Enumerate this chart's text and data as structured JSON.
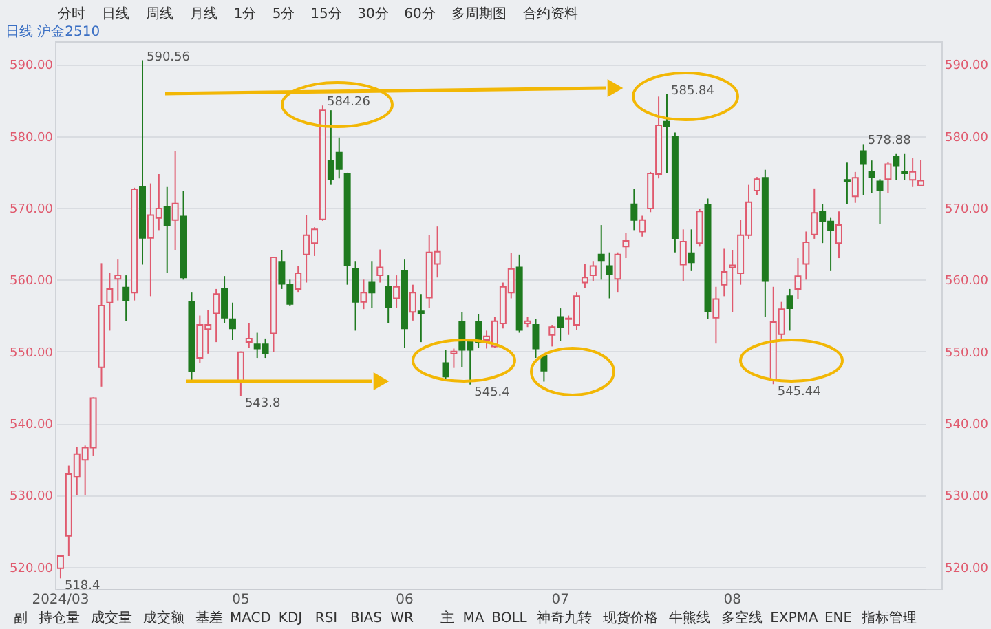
{
  "chart_data": {
    "type": "candlestick",
    "title": "日线 沪金2510",
    "categories": [
      "2024/03",
      null,
      null,
      null,
      null,
      null,
      null,
      null,
      null,
      null,
      null,
      null,
      null,
      null,
      null,
      null,
      null,
      null,
      null,
      null,
      null,
      null,
      "05",
      null,
      null,
      null,
      null,
      null,
      null,
      null,
      null,
      null,
      null,
      null,
      null,
      null,
      null,
      null,
      null,
      null,
      null,
      null,
      "06",
      null,
      null,
      null,
      null,
      null,
      null,
      null,
      null,
      null,
      null,
      null,
      null,
      null,
      null,
      null,
      null,
      null,
      null,
      "07",
      null,
      null,
      null,
      null,
      null,
      null,
      null,
      null,
      null,
      null,
      null,
      null,
      null,
      null,
      null,
      null,
      null,
      null,
      null,
      null,
      "08",
      null,
      null,
      null,
      null,
      null,
      null,
      null,
      null,
      null,
      null,
      null,
      null,
      null,
      null,
      null,
      null,
      null,
      null,
      null,
      null,
      null,
      null,
      null
    ],
    "ohlc": [
      [
        519.8,
        521.6,
        518.4,
        521.5
      ],
      [
        524.3,
        534.1,
        521.5,
        532.9
      ],
      [
        532.6,
        536.7,
        530.0,
        535.7
      ],
      [
        534.9,
        536.9,
        530.0,
        536.6
      ],
      [
        536.6,
        543.6,
        535.5,
        543.5
      ],
      [
        547.8,
        562.3,
        545.1,
        556.4
      ],
      [
        556.8,
        560.9,
        552.9,
        558.7
      ],
      [
        560.1,
        562.8,
        557.1,
        560.6
      ],
      [
        558.9,
        560.6,
        554.2,
        557.1
      ],
      [
        558.2,
        572.8,
        557.1,
        572.6
      ],
      [
        572.9,
        590.56,
        562.1,
        565.8
      ],
      [
        565.8,
        573.4,
        557.7,
        569.0
      ],
      [
        568.6,
        574.7,
        566.9,
        569.9
      ],
      [
        570.1,
        572.9,
        560.9,
        567.5
      ],
      [
        568.3,
        577.9,
        564.1,
        570.6
      ],
      [
        568.8,
        572.4,
        560.0,
        560.3
      ],
      [
        556.9,
        558.2,
        546.0,
        547.2
      ],
      [
        549.1,
        555.0,
        548.4,
        553.7
      ],
      [
        553.1,
        555.8,
        549.7,
        553.7
      ],
      [
        555.3,
        558.7,
        551.3,
        558.0
      ],
      [
        558.8,
        560.5,
        553.9,
        554.7
      ],
      [
        554.5,
        556.8,
        551.6,
        553.2
      ],
      [
        545.8,
        550.0,
        543.8,
        549.9
      ],
      [
        551.3,
        553.9,
        550.5,
        551.8
      ],
      [
        551.0,
        552.6,
        549.1,
        550.4
      ],
      [
        551.0,
        551.8,
        549.1,
        549.7
      ],
      [
        552.5,
        563.2,
        549.9,
        563.1
      ],
      [
        562.5,
        564.1,
        558.7,
        559.4
      ],
      [
        559.3,
        560.0,
        556.4,
        556.6
      ],
      [
        558.7,
        561.9,
        558.2,
        560.9
      ],
      [
        563.5,
        569.0,
        559.6,
        566.2
      ],
      [
        565.1,
        567.3,
        563.3,
        567.0
      ],
      [
        568.4,
        584.26,
        568.2,
        583.6
      ],
      [
        576.6,
        583.6,
        573.2,
        574.0
      ],
      [
        577.7,
        579.8,
        574.1,
        575.4
      ],
      [
        574.8,
        574.9,
        559.3,
        562.0
      ],
      [
        561.5,
        562.6,
        552.9,
        556.9
      ],
      [
        556.9,
        560.0,
        555.9,
        558.2
      ],
      [
        559.6,
        562.6,
        556.1,
        558.2
      ],
      [
        560.6,
        564.2,
        559.6,
        561.7
      ],
      [
        559.0,
        560.6,
        553.9,
        556.2
      ],
      [
        557.4,
        560.6,
        556.1,
        559.0
      ],
      [
        561.2,
        562.8,
        550.5,
        553.2
      ],
      [
        555.5,
        559.3,
        554.3,
        558.2
      ],
      [
        555.6,
        558.0,
        551.3,
        555.3
      ],
      [
        557.5,
        566.2,
        556.1,
        563.8
      ],
      [
        562.2,
        567.4,
        560.3,
        563.9
      ],
      [
        548.4,
        550.2,
        545.9,
        546.5
      ],
      [
        549.7,
        550.4,
        547.7,
        550.0
      ],
      [
        554.1,
        555.5,
        547.8,
        550.2
      ],
      [
        551.5,
        551.6,
        545.4,
        550.2
      ],
      [
        554.1,
        555.2,
        550.5,
        551.3
      ],
      [
        551.6,
        552.9,
        550.4,
        552.1
      ],
      [
        550.7,
        554.8,
        550.5,
        554.2
      ],
      [
        553.9,
        559.6,
        553.2,
        559.0
      ],
      [
        558.2,
        563.7,
        557.4,
        561.5
      ],
      [
        561.7,
        563.5,
        552.6,
        553.0
      ],
      [
        553.9,
        554.8,
        553.4,
        554.2
      ],
      [
        553.7,
        554.5,
        549.1,
        550.4
      ],
      [
        549.4,
        549.7,
        545.8,
        547.3
      ],
      [
        552.3,
        553.7,
        550.7,
        553.4
      ],
      [
        554.8,
        556.0,
        551.5,
        553.4
      ],
      [
        554.5,
        555.0,
        552.3,
        554.6
      ],
      [
        553.7,
        558.2,
        553.0,
        557.7
      ],
      [
        559.6,
        562.2,
        558.8,
        560.3
      ],
      [
        560.6,
        562.6,
        559.8,
        561.9
      ],
      [
        563.5,
        567.6,
        560.0,
        562.7
      ],
      [
        561.9,
        563.8,
        557.4,
        560.8
      ],
      [
        560.1,
        563.8,
        558.2,
        563.5
      ],
      [
        564.6,
        566.5,
        563.0,
        565.4
      ],
      [
        570.5,
        572.6,
        566.9,
        568.3
      ],
      [
        566.7,
        568.9,
        566.0,
        568.3
      ],
      [
        569.9,
        575.0,
        569.4,
        574.8
      ],
      [
        574.7,
        585.5,
        574.1,
        581.5
      ],
      [
        582.0,
        585.84,
        574.8,
        581.4
      ],
      [
        579.9,
        580.5,
        563.8,
        565.7
      ],
      [
        562.1,
        567.0,
        559.8,
        565.3
      ],
      [
        563.7,
        567.0,
        561.2,
        562.4
      ],
      [
        565.1,
        569.9,
        564.6,
        569.5
      ],
      [
        570.4,
        571.3,
        554.5,
        555.6
      ],
      [
        554.7,
        559.0,
        551.1,
        557.3
      ],
      [
        559.3,
        564.3,
        557.7,
        561.1
      ],
      [
        561.7,
        564.1,
        555.5,
        562.0
      ],
      [
        560.9,
        568.3,
        559.3,
        566.2
      ],
      [
        566.2,
        573.2,
        565.6,
        570.8
      ],
      [
        572.4,
        574.3,
        571.8,
        574.0
      ],
      [
        574.2,
        575.3,
        554.8,
        559.8
      ],
      [
        546.0,
        559.0,
        545.44,
        554.1
      ],
      [
        552.4,
        556.9,
        551.8,
        555.9
      ],
      [
        557.7,
        558.7,
        552.9,
        556.0
      ],
      [
        558.7,
        563.0,
        557.3,
        560.5
      ],
      [
        562.2,
        566.7,
        560.0,
        565.2
      ],
      [
        566.3,
        572.7,
        565.7,
        569.3
      ],
      [
        569.5,
        570.5,
        565.1,
        568.1
      ],
      [
        568.1,
        568.6,
        561.2,
        566.9
      ],
      [
        565.1,
        569.5,
        563.0,
        567.6
      ],
      [
        573.9,
        576.3,
        570.5,
        573.7
      ],
      [
        571.6,
        575.0,
        570.7,
        574.2
      ],
      [
        577.9,
        578.88,
        571.8,
        576.1
      ],
      [
        575.0,
        576.6,
        572.1,
        574.3
      ],
      [
        573.7,
        574.0,
        567.7,
        572.4
      ],
      [
        574.0,
        576.4,
        572.1,
        576.1
      ],
      [
        577.2,
        577.5,
        573.9,
        575.9
      ],
      [
        575.0,
        577.5,
        573.9,
        574.8
      ],
      [
        573.9,
        576.9,
        572.9,
        575.0
      ],
      [
        573.1,
        576.7,
        573.1,
        573.8
      ]
    ],
    "colors": [
      "#e05a6e",
      "#e05a6e",
      "#e05a6e",
      "#e05a6e",
      "#e05a6e",
      "#e05a6e",
      "#e05a6e",
      "#e05a6e",
      "#1f7a1f",
      "#e05a6e",
      "#1f7a1f",
      "#e05a6e",
      "#e05a6e",
      "#1f7a1f",
      "#e05a6e",
      "#1f7a1f",
      "#1f7a1f",
      "#e05a6e",
      "#e05a6e",
      "#e05a6e",
      "#1f7a1f",
      "#1f7a1f",
      "#e05a6e",
      "#e05a6e",
      "#1f7a1f",
      "#1f7a1f",
      "#e05a6e",
      "#1f7a1f",
      "#1f7a1f",
      "#e05a6e",
      "#e05a6e",
      "#e05a6e",
      "#e05a6e",
      "#1f7a1f",
      "#1f7a1f",
      "#1f7a1f",
      "#1f7a1f",
      "#e05a6e",
      "#1f7a1f",
      "#e05a6e",
      "#1f7a1f",
      "#e05a6e",
      "#1f7a1f",
      "#e05a6e",
      "#1f7a1f",
      "#e05a6e",
      "#e05a6e",
      "#1f7a1f",
      "#e05a6e",
      "#1f7a1f",
      "#1f7a1f",
      "#1f7a1f",
      "#e05a6e",
      "#e05a6e",
      "#e05a6e",
      "#e05a6e",
      "#1f7a1f",
      "#e05a6e",
      "#1f7a1f",
      "#1f7a1f",
      "#e05a6e",
      "#1f7a1f",
      "#e05a6e",
      "#e05a6e",
      "#e05a6e",
      "#e05a6e",
      "#1f7a1f",
      "#1f7a1f",
      "#e05a6e",
      "#e05a6e",
      "#1f7a1f",
      "#e05a6e",
      "#e05a6e",
      "#e05a6e",
      "#1f7a1f",
      "#1f7a1f",
      "#e05a6e",
      "#1f7a1f",
      "#e05a6e",
      "#1f7a1f",
      "#e05a6e",
      "#e05a6e",
      "#e05a6e",
      "#e05a6e",
      "#e05a6e",
      "#e05a6e",
      "#1f7a1f",
      "#e05a6e",
      "#e05a6e",
      "#1f7a1f",
      "#e05a6e",
      "#e05a6e",
      "#e05a6e",
      "#1f7a1f",
      "#1f7a1f",
      "#e05a6e",
      "#1f7a1f",
      "#e05a6e",
      "#1f7a1f",
      "#1f7a1f",
      "#1f7a1f",
      "#e05a6e",
      "#1f7a1f",
      "#1f7a1f",
      "#e05a6e",
      "#e05a6e"
    ],
    "ylim": [
      516.9,
      593.2
    ],
    "yticks": [
      {
        "value": 520,
        "label": "520.00"
      },
      {
        "value": 530,
        "label": "530.00"
      },
      {
        "value": 540,
        "label": "540.00"
      },
      {
        "value": 550,
        "label": "550.00"
      },
      {
        "value": 560,
        "label": "560.00"
      },
      {
        "value": 570,
        "label": "570.00"
      },
      {
        "value": 580,
        "label": "580.00"
      },
      {
        "value": 590,
        "label": "590.00"
      }
    ],
    "y2lim": [
      516.9,
      593.2
    ],
    "y2ticks": [
      {
        "value": 520,
        "label": "520.00"
      },
      {
        "value": 530,
        "label": "530.00"
      },
      {
        "value": 540,
        "label": "540.00"
      },
      {
        "value": 550,
        "label": "550.00"
      },
      {
        "value": 560,
        "label": "560.00"
      },
      {
        "value": 570,
        "label": "570.00"
      },
      {
        "value": 580,
        "label": "580.00"
      },
      {
        "value": 590,
        "label": "590.00"
      }
    ],
    "grid": "y",
    "annotations": [
      "590.56",
      "518.4",
      "584.26",
      "543.8",
      "545.4",
      "585.84",
      "545.44",
      "578.88",
      "分时",
      "日线",
      "周线",
      "月线",
      "1分",
      "5分",
      "15分",
      "30分",
      "60分",
      "多周期图",
      "合约资料",
      "副",
      "持仓量",
      "成交量",
      "成交额",
      "基差",
      "MACD",
      "KDJ",
      "RSI",
      "BIAS",
      "WR",
      "主",
      "MA",
      "BOLL",
      "神奇九转",
      "现货价格",
      "牛熊线",
      "多空线",
      "EXPMA",
      "ENE",
      "指标管理"
    ]
  }
}
